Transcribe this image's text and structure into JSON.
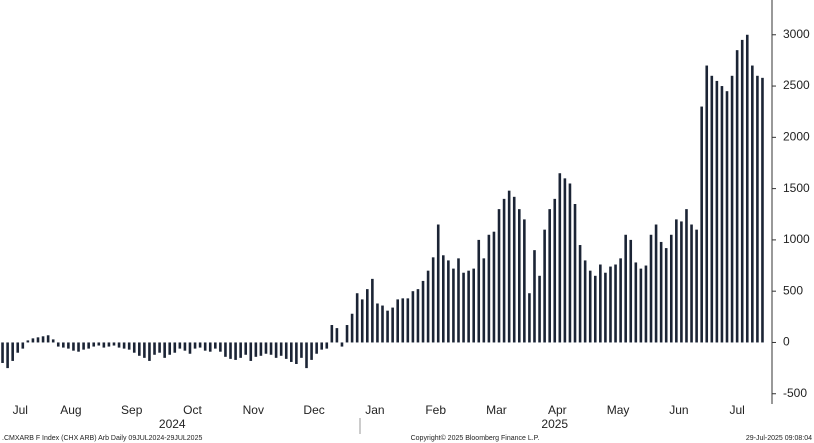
{
  "chart_data": {
    "type": "bar",
    "color": "#1b2435",
    "ylim": [
      -600,
      3300
    ],
    "yticks": [
      -500,
      0,
      500,
      1000,
      1500,
      2000,
      2500,
      3000
    ],
    "categories": [
      "Jul",
      null,
      null,
      null,
      null,
      null,
      null,
      null,
      "Aug",
      null,
      null,
      null,
      null,
      null,
      null,
      null,
      null,
      null,
      null,
      null,
      "Sep",
      null,
      null,
      null,
      null,
      null,
      null,
      null,
      null,
      null,
      null,
      null,
      "Oct",
      null,
      null,
      null,
      null,
      null,
      null,
      null,
      null,
      null,
      null,
      null,
      "Nov",
      null,
      null,
      null,
      null,
      null,
      null,
      null,
      null,
      null,
      null,
      null,
      "Dec",
      null,
      null,
      null,
      null,
      null,
      null,
      null,
      null,
      null,
      null,
      null,
      "Jan",
      null,
      null,
      null,
      null,
      null,
      null,
      null,
      null,
      null,
      null,
      null,
      "Feb",
      null,
      null,
      null,
      null,
      null,
      null,
      null,
      null,
      null,
      null,
      null,
      "Mar",
      null,
      null,
      null,
      null,
      null,
      null,
      null,
      null,
      null,
      null,
      null,
      "Apr",
      null,
      null,
      null,
      null,
      null,
      null,
      null,
      null,
      null,
      null,
      null,
      "May",
      null,
      null,
      null,
      null,
      null,
      null,
      null,
      null,
      null,
      null,
      null,
      "Jun",
      null,
      null,
      null,
      null,
      null,
      null,
      null,
      null,
      null,
      null,
      null,
      "Jul",
      null,
      null,
      null,
      null,
      null,
      null,
      null,
      null,
      null,
      null
    ],
    "values": [
      -200,
      -250,
      -180,
      -100,
      -60,
      20,
      40,
      50,
      60,
      70,
      30,
      -40,
      -50,
      -60,
      -80,
      -90,
      -70,
      -60,
      -40,
      -30,
      -50,
      -40,
      -30,
      -50,
      -60,
      -70,
      -100,
      -130,
      -150,
      -180,
      -120,
      -100,
      -150,
      -120,
      -100,
      -60,
      -80,
      -110,
      -60,
      -50,
      -80,
      -90,
      -60,
      -90,
      -140,
      -160,
      -170,
      -150,
      -120,
      -180,
      -140,
      -130,
      -110,
      -120,
      -150,
      -130,
      -160,
      -190,
      -210,
      -150,
      -250,
      -170,
      -110,
      -70,
      -60,
      170,
      140,
      -40,
      170,
      280,
      480,
      420,
      520,
      620,
      380,
      360,
      310,
      340,
      420,
      430,
      430,
      500,
      520,
      600,
      700,
      830,
      1150,
      850,
      800,
      720,
      820,
      680,
      700,
      720,
      1000,
      820,
      1050,
      1080,
      1300,
      1400,
      1480,
      1420,
      1300,
      1200,
      480,
      900,
      650,
      1100,
      1300,
      1400,
      1650,
      1600,
      1550,
      1350,
      950,
      800,
      700,
      650,
      760,
      680,
      740,
      760,
      820,
      1050,
      1000,
      780,
      720,
      750,
      1050,
      1150,
      980,
      920,
      1050,
      1200,
      1180,
      1300,
      1150,
      1100,
      2300,
      2700,
      2600,
      2550,
      2500,
      2450,
      2600,
      2850,
      2950,
      3000,
      2700,
      2600,
      2580
    ],
    "years": [
      "2024",
      "2025"
    ],
    "footer_left": ".CMXARB F Index (CHX ARB) Arb  Daily 09JUL2024-29JUL2025",
    "footer_center": "Copyright© 2025 Bloomberg Finance L.P.",
    "footer_right": "29-Jul-2025 09:08:04"
  }
}
